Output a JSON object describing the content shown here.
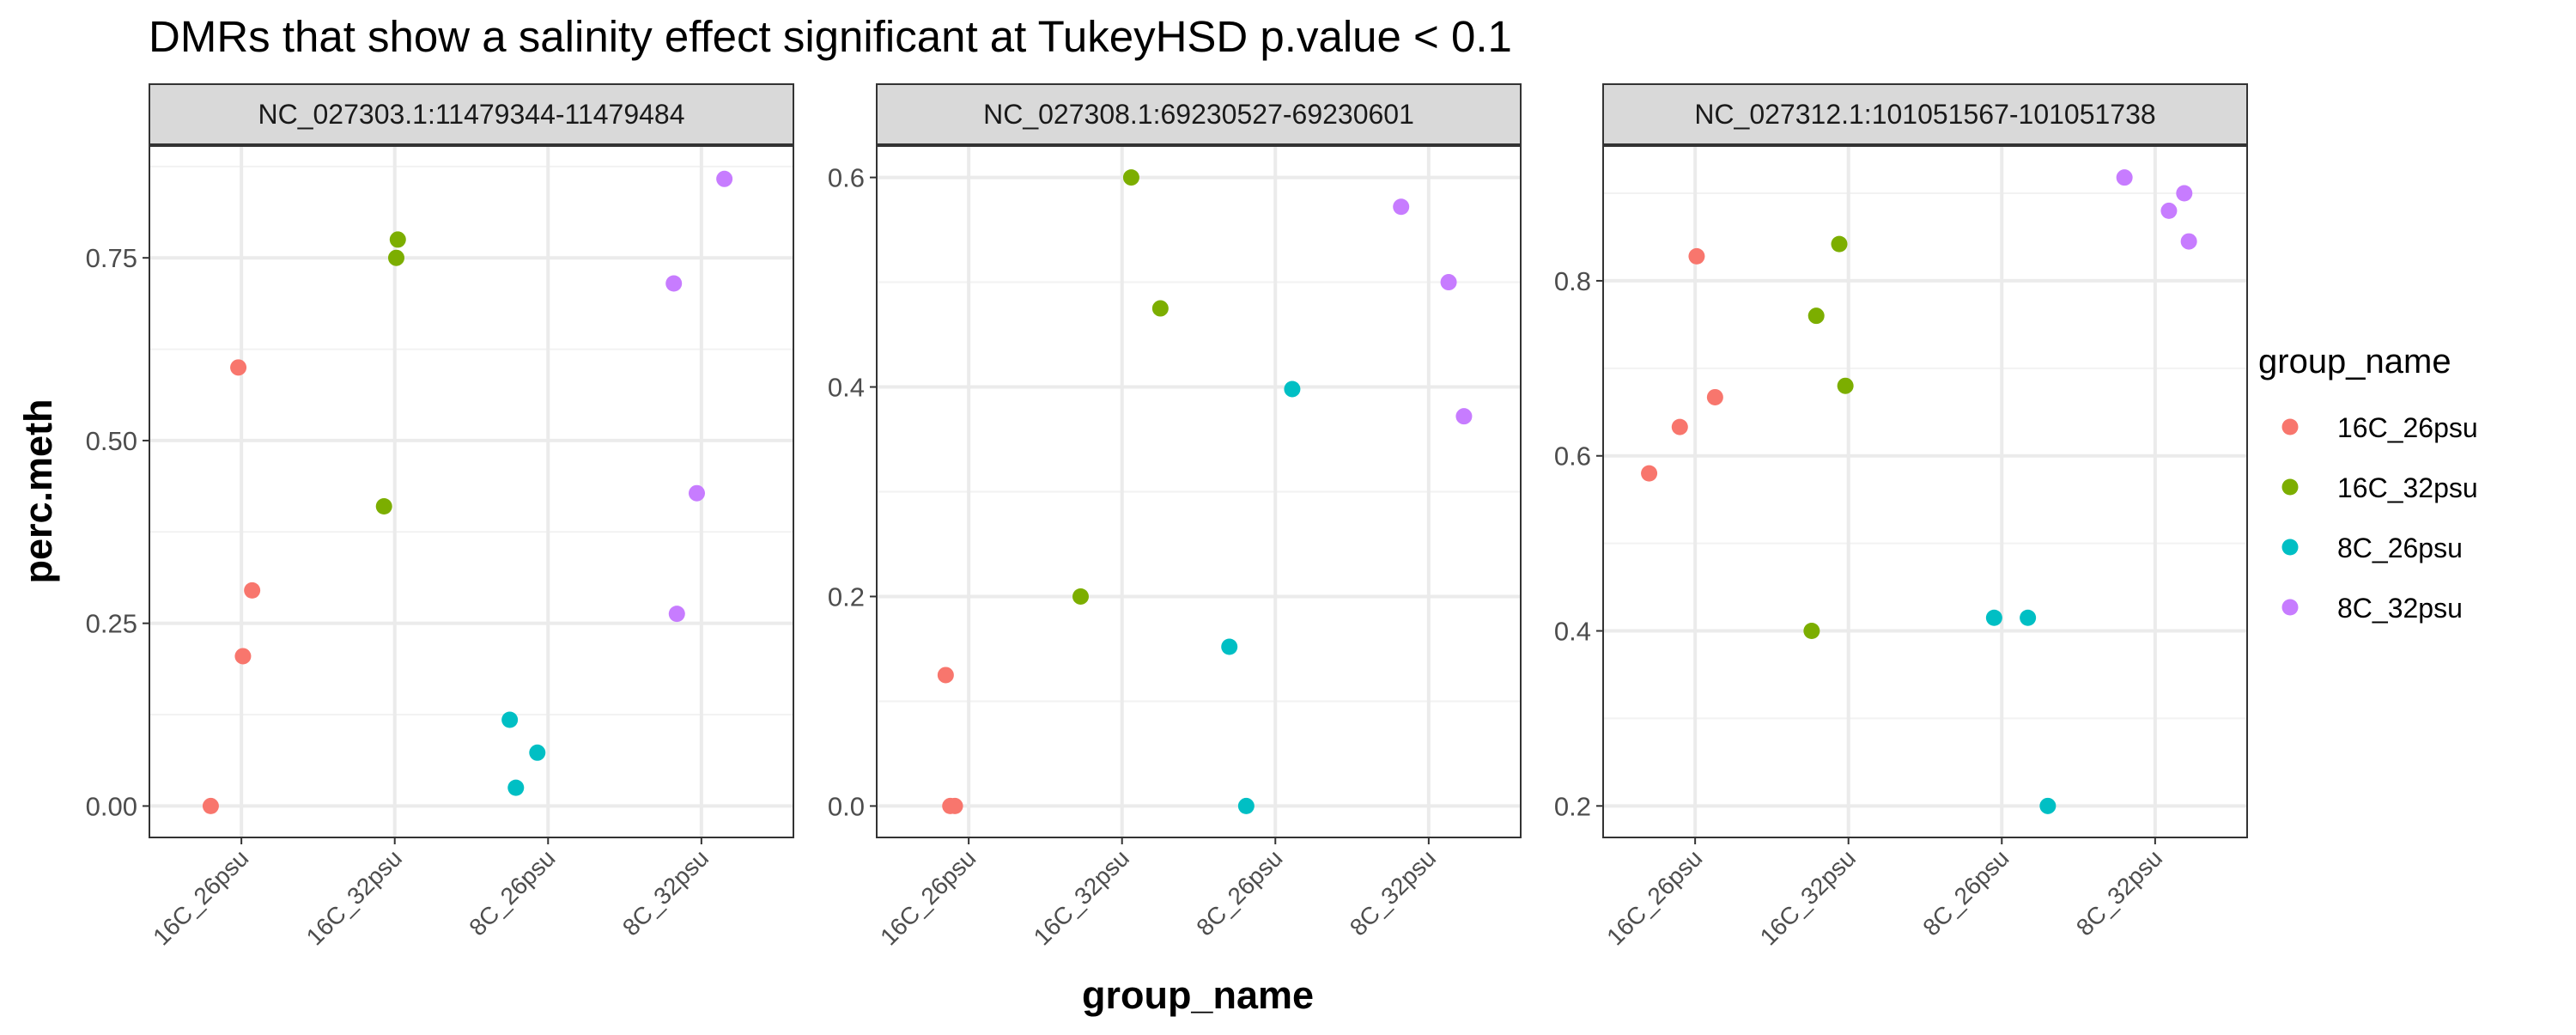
{
  "chart_data": {
    "type": "scatter",
    "title": "DMRs that show a salinity effect significant at TukeyHSD p.value < 0.1",
    "xlabel": "group_name",
    "ylabel": "perc.meth",
    "categories": [
      "16C_26psu",
      "16C_32psu",
      "8C_26psu",
      "8C_32psu"
    ],
    "legend": {
      "title": "group_name",
      "position": "right",
      "entries": [
        {
          "name": "16C_26psu",
          "color": "#F8766D"
        },
        {
          "name": "16C_32psu",
          "color": "#7CAE00"
        },
        {
          "name": "8C_26psu",
          "color": "#00BFC4"
        },
        {
          "name": "8C_32psu",
          "color": "#C77CFF"
        }
      ]
    },
    "grid": true,
    "panels": [
      {
        "strip": "NC_027303.1:11479344-11479484",
        "ylim": [
          -0.043,
          0.903
        ],
        "yticks": [
          0,
          0.25,
          0.5,
          0.75
        ],
        "ytick_labels": [
          "0.00",
          "0.25",
          "0.50",
          "0.75"
        ],
        "points": [
          {
            "group": "16C_26psu",
            "x": 0.8,
            "y": 0.0
          },
          {
            "group": "16C_26psu",
            "x": 0.98,
            "y": 0.6
          },
          {
            "group": "16C_26psu",
            "x": 1.01,
            "y": 0.205
          },
          {
            "group": "16C_26psu",
            "x": 1.07,
            "y": 0.295
          },
          {
            "group": "16C_32psu",
            "x": 1.93,
            "y": 0.41
          },
          {
            "group": "16C_32psu",
            "x": 2.01,
            "y": 0.75
          },
          {
            "group": "16C_32psu",
            "x": 2.02,
            "y": 0.775
          },
          {
            "group": "8C_26psu",
            "x": 2.75,
            "y": 0.118
          },
          {
            "group": "8C_26psu",
            "x": 2.79,
            "y": 0.025
          },
          {
            "group": "8C_26psu",
            "x": 2.93,
            "y": 0.073
          },
          {
            "group": "8C_32psu",
            "x": 3.82,
            "y": 0.715
          },
          {
            "group": "8C_32psu",
            "x": 3.84,
            "y": 0.263
          },
          {
            "group": "8C_32psu",
            "x": 3.97,
            "y": 0.428
          },
          {
            "group": "8C_32psu",
            "x": 4.15,
            "y": 0.858
          }
        ]
      },
      {
        "strip": "NC_027308.1:69230527-69230601",
        "ylim": [
          -0.03,
          0.63
        ],
        "yticks": [
          0,
          0.2,
          0.4,
          0.6
        ],
        "ytick_labels": [
          "0.0",
          "0.2",
          "0.4",
          "0.6"
        ],
        "points": [
          {
            "group": "16C_26psu",
            "x": 0.85,
            "y": 0.125
          },
          {
            "group": "16C_26psu",
            "x": 0.88,
            "y": 0.0
          },
          {
            "group": "16C_26psu",
            "x": 0.91,
            "y": 0.0
          },
          {
            "group": "16C_32psu",
            "x": 1.73,
            "y": 0.2
          },
          {
            "group": "16C_32psu",
            "x": 2.06,
            "y": 0.6
          },
          {
            "group": "16C_32psu",
            "x": 2.25,
            "y": 0.475
          },
          {
            "group": "8C_26psu",
            "x": 2.7,
            "y": 0.152
          },
          {
            "group": "8C_26psu",
            "x": 2.81,
            "y": 0.0
          },
          {
            "group": "8C_26psu",
            "x": 3.11,
            "y": 0.398
          },
          {
            "group": "8C_32psu",
            "x": 3.82,
            "y": 0.572
          },
          {
            "group": "8C_32psu",
            "x": 4.13,
            "y": 0.5
          },
          {
            "group": "8C_32psu",
            "x": 4.23,
            "y": 0.372
          }
        ]
      },
      {
        "strip": "NC_027312.1:101051567-101051738",
        "ylim": [
          0.164,
          0.954
        ],
        "yticks": [
          0.2,
          0.4,
          0.6,
          0.8
        ],
        "ytick_labels": [
          "0.2",
          "0.4",
          "0.6",
          "0.8"
        ],
        "points": [
          {
            "group": "16C_26psu",
            "x": 0.7,
            "y": 0.58
          },
          {
            "group": "16C_26psu",
            "x": 0.9,
            "y": 0.633
          },
          {
            "group": "16C_26psu",
            "x": 1.01,
            "y": 0.828
          },
          {
            "group": "16C_26psu",
            "x": 1.13,
            "y": 0.667
          },
          {
            "group": "16C_32psu",
            "x": 1.76,
            "y": 0.4
          },
          {
            "group": "16C_32psu",
            "x": 1.79,
            "y": 0.76
          },
          {
            "group": "16C_32psu",
            "x": 1.94,
            "y": 0.842
          },
          {
            "group": "16C_32psu",
            "x": 1.98,
            "y": 0.68
          },
          {
            "group": "8C_26psu",
            "x": 2.95,
            "y": 0.415
          },
          {
            "group": "8C_26psu",
            "x": 3.17,
            "y": 0.415
          },
          {
            "group": "8C_26psu",
            "x": 3.3,
            "y": 0.2
          },
          {
            "group": "8C_32psu",
            "x": 3.8,
            "y": 0.918
          },
          {
            "group": "8C_32psu",
            "x": 4.09,
            "y": 0.88
          },
          {
            "group": "8C_32psu",
            "x": 4.19,
            "y": 0.9
          },
          {
            "group": "8C_32psu",
            "x": 4.22,
            "y": 0.845
          }
        ]
      }
    ]
  }
}
